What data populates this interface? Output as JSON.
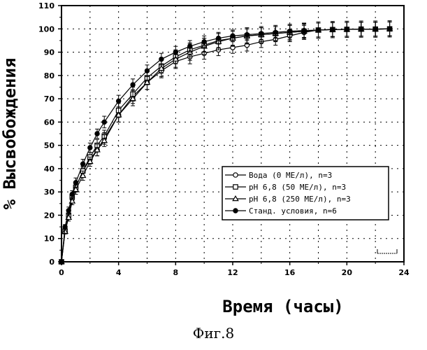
{
  "caption": "Фиг.8",
  "chart_data": {
    "type": "line",
    "xlabel": "Время (часы)",
    "ylabel": "% Высвобождения",
    "xlim": [
      0,
      24
    ],
    "ylim": [
      0,
      110
    ],
    "xticks": [
      0,
      4,
      8,
      12,
      16,
      20,
      24
    ],
    "yticks": [
      0,
      10,
      20,
      30,
      40,
      50,
      60,
      70,
      80,
      90,
      100,
      110
    ],
    "grid": "dashed",
    "legend_position": "lower-right",
    "series": [
      {
        "name": "Вода (0 МЕ/л), n=3",
        "marker": "circle-open",
        "x": [
          0,
          0.25,
          0.5,
          0.75,
          1,
          1.5,
          2,
          2.5,
          3,
          4,
          5,
          6,
          7,
          8,
          9,
          10,
          11,
          12,
          13,
          14,
          15,
          16,
          17,
          18,
          19,
          20,
          21,
          22,
          23
        ],
        "y": [
          0,
          14,
          20,
          27,
          32,
          39,
          44,
          48,
          53,
          63,
          71,
          77,
          82,
          86,
          88,
          89.5,
          91,
          92,
          93,
          94.5,
          95.5,
          97,
          98.5,
          99.5,
          99.7,
          99.8,
          99.9,
          99.9,
          100
        ],
        "err": [
          0,
          1,
          1.5,
          1.5,
          2,
          2,
          2,
          2.5,
          2.5,
          3,
          3,
          3,
          3,
          3,
          3,
          2.5,
          2.5,
          2.5,
          2.5,
          2.5,
          2.5,
          2.5,
          3,
          3,
          3,
          3,
          3,
          3,
          3
        ]
      },
      {
        "name": "pH 6,8 (50 МЕ/л), n=3",
        "marker": "square-open",
        "x": [
          0,
          0.25,
          0.5,
          0.75,
          1,
          1.5,
          2,
          2.5,
          3,
          4,
          5,
          6,
          7,
          8,
          9,
          10,
          11,
          12,
          13,
          14,
          15,
          16,
          17,
          18,
          19,
          20,
          21,
          22,
          23
        ],
        "y": [
          0,
          13,
          20,
          28,
          32,
          39,
          45,
          50,
          54,
          65,
          72,
          79,
          84,
          88,
          91,
          93,
          95,
          96,
          97,
          97.5,
          98,
          98.5,
          99,
          99.5,
          99.7,
          99.8,
          99.9,
          99.9,
          100
        ],
        "err": [
          0,
          1,
          1.5,
          1.5,
          2,
          2,
          2,
          2.5,
          2.5,
          3,
          3,
          3,
          3,
          3,
          3,
          3,
          3,
          3,
          3,
          3,
          3,
          3,
          3,
          3,
          3,
          3,
          3,
          3,
          3
        ]
      },
      {
        "name": "pH 6,8 (250 МЕ/л), n=3",
        "marker": "triangle-open",
        "x": [
          0,
          0.25,
          0.5,
          0.75,
          1,
          1.5,
          2,
          2.5,
          3,
          4,
          5,
          6,
          7,
          8,
          9,
          10,
          11,
          12,
          13,
          14,
          15,
          16,
          17,
          18,
          19,
          20,
          21,
          22,
          23
        ],
        "y": [
          0,
          13,
          19,
          26,
          31,
          37,
          43,
          48,
          52,
          63,
          70,
          77,
          83,
          87,
          90,
          92.5,
          94.5,
          96,
          97,
          97.5,
          98,
          98.5,
          99,
          99.5,
          99.7,
          99.8,
          99.9,
          99.9,
          100
        ],
        "err": [
          0,
          1,
          1.5,
          1.5,
          2,
          2,
          2,
          2.5,
          2.5,
          3,
          3,
          3,
          3.5,
          3.5,
          3.5,
          3.5,
          3.5,
          3.5,
          3.5,
          3.5,
          3.5,
          3.5,
          3.5,
          3.5,
          3.5,
          3.5,
          3.5,
          3.5,
          3.5
        ]
      },
      {
        "name": "Станд. условия, n=6",
        "marker": "circle-filled",
        "x": [
          0,
          0.25,
          0.5,
          0.75,
          1,
          1.5,
          2,
          2.5,
          3,
          4,
          5,
          6,
          7,
          8,
          9,
          10,
          11,
          12,
          13,
          14,
          15,
          16,
          17,
          18,
          19,
          20,
          21,
          22,
          23
        ],
        "y": [
          0,
          15,
          22,
          29,
          34,
          42,
          49,
          55,
          60,
          69,
          76,
          82,
          87,
          90,
          92.5,
          94.5,
          96,
          97,
          97.5,
          98,
          98.5,
          99,
          99.3,
          99.5,
          99.7,
          99.8,
          99.9,
          99.9,
          100
        ],
        "err": [
          0,
          1,
          1.5,
          1.5,
          2,
          2,
          2,
          2,
          2.5,
          2.5,
          2.5,
          2.5,
          2.5,
          2.5,
          2.5,
          2.5,
          2.5,
          2.5,
          2.5,
          2.5,
          2.5,
          2.5,
          3,
          3,
          3,
          3,
          3,
          3,
          3
        ]
      }
    ]
  }
}
